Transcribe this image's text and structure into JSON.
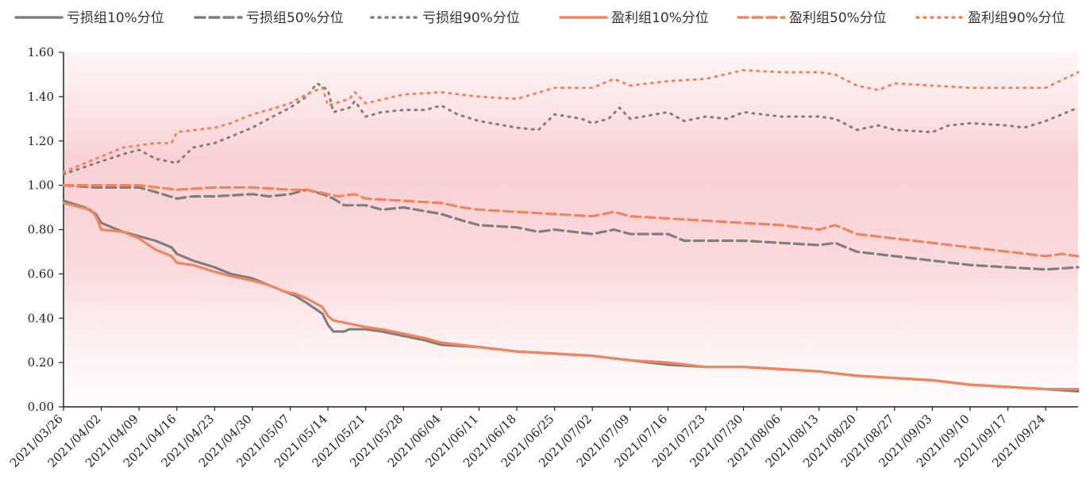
{
  "chart_data": {
    "type": "line",
    "title": "",
    "xlabel": "",
    "ylabel": "",
    "ylim": [
      0,
      1.6
    ],
    "yticks": [
      "0.00",
      "0.20",
      "0.40",
      "0.60",
      "0.80",
      "1.00",
      "1.20",
      "1.40",
      "1.60"
    ],
    "x_range": [
      "2021/03/26",
      "2021/09/30"
    ],
    "x_tick_labels": [
      "2021/03/26",
      "2021/04/02",
      "2021/04/09",
      "2021/04/16",
      "2021/04/23",
      "2021/04/30",
      "2021/05/07",
      "2021/05/14",
      "2021/05/21",
      "2021/05/28",
      "2021/06/04",
      "2021/06/11",
      "2021/06/18",
      "2021/06/25",
      "2021/07/02",
      "2021/07/09",
      "2021/07/16",
      "2021/07/23",
      "2021/07/30",
      "2021/08/06",
      "2021/08/13",
      "2021/08/20",
      "2021/08/27",
      "2021/09/03",
      "2021/09/10",
      "2021/09/17",
      "2021/09/24"
    ],
    "legend_position": "top",
    "background": "pink vertical gradient fill",
    "series": [
      {
        "name": "亏损组10%分位",
        "color": "#7f7f7f",
        "dash": "solid",
        "points": [
          [
            "2021/03/26",
            0.93
          ],
          [
            "2021/03/30",
            0.9
          ],
          [
            "2021/04/01",
            0.87
          ],
          [
            "2021/04/02",
            0.83
          ],
          [
            "2021/04/06",
            0.79
          ],
          [
            "2021/04/09",
            0.77
          ],
          [
            "2021/04/12",
            0.75
          ],
          [
            "2021/04/15",
            0.72
          ],
          [
            "2021/04/16",
            0.69
          ],
          [
            "2021/04/19",
            0.66
          ],
          [
            "2021/04/23",
            0.63
          ],
          [
            "2021/04/26",
            0.6
          ],
          [
            "2021/04/30",
            0.58
          ],
          [
            "2021/05/03",
            0.55
          ],
          [
            "2021/05/06",
            0.52
          ],
          [
            "2021/05/08",
            0.5
          ],
          [
            "2021/05/10",
            0.47
          ],
          [
            "2021/05/13",
            0.42
          ],
          [
            "2021/05/14",
            0.37
          ],
          [
            "2021/05/15",
            0.34
          ],
          [
            "2021/05/17",
            0.34
          ],
          [
            "2021/05/18",
            0.35
          ],
          [
            "2021/05/21",
            0.35
          ],
          [
            "2021/05/24",
            0.34
          ],
          [
            "2021/05/28",
            0.32
          ],
          [
            "2021/06/01",
            0.3
          ],
          [
            "2021/06/04",
            0.28
          ],
          [
            "2021/06/11",
            0.27
          ],
          [
            "2021/06/18",
            0.25
          ],
          [
            "2021/06/25",
            0.24
          ],
          [
            "2021/07/02",
            0.23
          ],
          [
            "2021/07/09",
            0.21
          ],
          [
            "2021/07/16",
            0.19
          ],
          [
            "2021/07/23",
            0.18
          ],
          [
            "2021/07/30",
            0.18
          ],
          [
            "2021/08/06",
            0.17
          ],
          [
            "2021/08/13",
            0.16
          ],
          [
            "2021/08/20",
            0.14
          ],
          [
            "2021/08/27",
            0.13
          ],
          [
            "2021/09/03",
            0.12
          ],
          [
            "2021/09/10",
            0.1
          ],
          [
            "2021/09/17",
            0.09
          ],
          [
            "2021/09/24",
            0.08
          ],
          [
            "2021/09/30",
            0.07
          ]
        ]
      },
      {
        "name": "亏损组50%分位",
        "color": "#7f7f7f",
        "dash": "dashed",
        "points": [
          [
            "2021/03/26",
            1.0
          ],
          [
            "2021/04/01",
            0.99
          ],
          [
            "2021/04/02",
            0.99
          ],
          [
            "2021/04/09",
            0.99
          ],
          [
            "2021/04/12",
            0.97
          ],
          [
            "2021/04/16",
            0.94
          ],
          [
            "2021/04/19",
            0.95
          ],
          [
            "2021/04/23",
            0.95
          ],
          [
            "2021/04/30",
            0.96
          ],
          [
            "2021/05/03",
            0.95
          ],
          [
            "2021/05/07",
            0.96
          ],
          [
            "2021/05/10",
            0.98
          ],
          [
            "2021/05/13",
            0.96
          ],
          [
            "2021/05/15",
            0.94
          ],
          [
            "2021/05/17",
            0.91
          ],
          [
            "2021/05/21",
            0.91
          ],
          [
            "2021/05/24",
            0.89
          ],
          [
            "2021/05/28",
            0.9
          ],
          [
            "2021/06/04",
            0.87
          ],
          [
            "2021/06/08",
            0.84
          ],
          [
            "2021/06/11",
            0.82
          ],
          [
            "2021/06/18",
            0.81
          ],
          [
            "2021/06/22",
            0.79
          ],
          [
            "2021/06/25",
            0.8
          ],
          [
            "2021/07/02",
            0.78
          ],
          [
            "2021/07/06",
            0.8
          ],
          [
            "2021/07/09",
            0.78
          ],
          [
            "2021/07/16",
            0.78
          ],
          [
            "2021/07/19",
            0.75
          ],
          [
            "2021/07/23",
            0.75
          ],
          [
            "2021/07/30",
            0.75
          ],
          [
            "2021/08/06",
            0.74
          ],
          [
            "2021/08/13",
            0.73
          ],
          [
            "2021/08/16",
            0.74
          ],
          [
            "2021/08/20",
            0.7
          ],
          [
            "2021/08/27",
            0.68
          ],
          [
            "2021/09/03",
            0.66
          ],
          [
            "2021/09/10",
            0.64
          ],
          [
            "2021/09/17",
            0.63
          ],
          [
            "2021/09/24",
            0.62
          ],
          [
            "2021/09/30",
            0.63
          ]
        ]
      },
      {
        "name": "亏损组90%分位",
        "color": "#7f7f7f",
        "dash": "dotted",
        "points": [
          [
            "2021/03/26",
            1.05
          ],
          [
            "2021/04/01",
            1.1
          ],
          [
            "2021/04/06",
            1.14
          ],
          [
            "2021/04/09",
            1.16
          ],
          [
            "2021/04/12",
            1.12
          ],
          [
            "2021/04/16",
            1.1
          ],
          [
            "2021/04/19",
            1.17
          ],
          [
            "2021/04/23",
            1.19
          ],
          [
            "2021/04/26",
            1.22
          ],
          [
            "2021/04/30",
            1.26
          ],
          [
            "2021/05/03",
            1.3
          ],
          [
            "2021/05/07",
            1.35
          ],
          [
            "2021/05/10",
            1.4
          ],
          [
            "2021/05/12",
            1.46
          ],
          [
            "2021/05/14",
            1.43
          ],
          [
            "2021/05/15",
            1.33
          ],
          [
            "2021/05/18",
            1.35
          ],
          [
            "2021/05/19",
            1.38
          ],
          [
            "2021/05/21",
            1.31
          ],
          [
            "2021/05/24",
            1.33
          ],
          [
            "2021/05/28",
            1.34
          ],
          [
            "2021/06/01",
            1.34
          ],
          [
            "2021/06/04",
            1.36
          ],
          [
            "2021/06/07",
            1.32
          ],
          [
            "2021/06/11",
            1.29
          ],
          [
            "2021/06/18",
            1.26
          ],
          [
            "2021/06/22",
            1.25
          ],
          [
            "2021/06/25",
            1.32
          ],
          [
            "2021/06/30",
            1.3
          ],
          [
            "2021/07/02",
            1.28
          ],
          [
            "2021/07/05",
            1.3
          ],
          [
            "2021/07/07",
            1.35
          ],
          [
            "2021/07/09",
            1.3
          ],
          [
            "2021/07/16",
            1.33
          ],
          [
            "2021/07/19",
            1.29
          ],
          [
            "2021/07/23",
            1.31
          ],
          [
            "2021/07/27",
            1.3
          ],
          [
            "2021/07/30",
            1.33
          ],
          [
            "2021/08/06",
            1.31
          ],
          [
            "2021/08/13",
            1.31
          ],
          [
            "2021/08/16",
            1.3
          ],
          [
            "2021/08/20",
            1.25
          ],
          [
            "2021/08/24",
            1.27
          ],
          [
            "2021/08/27",
            1.25
          ],
          [
            "2021/09/03",
            1.24
          ],
          [
            "2021/09/06",
            1.27
          ],
          [
            "2021/09/10",
            1.28
          ],
          [
            "2021/09/17",
            1.27
          ],
          [
            "2021/09/20",
            1.26
          ],
          [
            "2021/09/24",
            1.29
          ],
          [
            "2021/09/30",
            1.35
          ]
        ]
      },
      {
        "name": "盈利组10%分位",
        "color": "#f08660",
        "dash": "solid",
        "points": [
          [
            "2021/03/26",
            0.92
          ],
          [
            "2021/03/31",
            0.89
          ],
          [
            "2021/04/01",
            0.86
          ],
          [
            "2021/04/02",
            0.8
          ],
          [
            "2021/04/06",
            0.79
          ],
          [
            "2021/04/09",
            0.76
          ],
          [
            "2021/04/12",
            0.71
          ],
          [
            "2021/04/15",
            0.68
          ],
          [
            "2021/04/16",
            0.65
          ],
          [
            "2021/04/19",
            0.64
          ],
          [
            "2021/04/23",
            0.61
          ],
          [
            "2021/04/26",
            0.59
          ],
          [
            "2021/04/30",
            0.57
          ],
          [
            "2021/05/03",
            0.55
          ],
          [
            "2021/05/06",
            0.52
          ],
          [
            "2021/05/08",
            0.51
          ],
          [
            "2021/05/10",
            0.49
          ],
          [
            "2021/05/13",
            0.45
          ],
          [
            "2021/05/14",
            0.41
          ],
          [
            "2021/05/15",
            0.39
          ],
          [
            "2021/05/17",
            0.38
          ],
          [
            "2021/05/21",
            0.36
          ],
          [
            "2021/05/24",
            0.35
          ],
          [
            "2021/05/28",
            0.33
          ],
          [
            "2021/06/01",
            0.31
          ],
          [
            "2021/06/04",
            0.29
          ],
          [
            "2021/06/11",
            0.27
          ],
          [
            "2021/06/18",
            0.25
          ],
          [
            "2021/06/25",
            0.24
          ],
          [
            "2021/07/02",
            0.23
          ],
          [
            "2021/07/09",
            0.21
          ],
          [
            "2021/07/16",
            0.2
          ],
          [
            "2021/07/23",
            0.18
          ],
          [
            "2021/07/30",
            0.18
          ],
          [
            "2021/08/06",
            0.17
          ],
          [
            "2021/08/13",
            0.16
          ],
          [
            "2021/08/20",
            0.14
          ],
          [
            "2021/08/27",
            0.13
          ],
          [
            "2021/09/03",
            0.12
          ],
          [
            "2021/09/10",
            0.1
          ],
          [
            "2021/09/17",
            0.09
          ],
          [
            "2021/09/24",
            0.08
          ],
          [
            "2021/09/30",
            0.08
          ]
        ]
      },
      {
        "name": "盈利组50%分位",
        "color": "#f08660",
        "dash": "dashed",
        "points": [
          [
            "2021/03/26",
            1.0
          ],
          [
            "2021/04/09",
            1.0
          ],
          [
            "2021/04/16",
            0.98
          ],
          [
            "2021/04/23",
            0.99
          ],
          [
            "2021/04/30",
            0.99
          ],
          [
            "2021/05/07",
            0.98
          ],
          [
            "2021/05/10",
            0.98
          ],
          [
            "2021/05/14",
            0.96
          ],
          [
            "2021/05/16",
            0.95
          ],
          [
            "2021/05/19",
            0.96
          ],
          [
            "2021/05/21",
            0.94
          ],
          [
            "2021/05/28",
            0.93
          ],
          [
            "2021/06/04",
            0.92
          ],
          [
            "2021/06/08",
            0.9
          ],
          [
            "2021/06/11",
            0.89
          ],
          [
            "2021/06/18",
            0.88
          ],
          [
            "2021/06/25",
            0.87
          ],
          [
            "2021/07/02",
            0.86
          ],
          [
            "2021/07/06",
            0.88
          ],
          [
            "2021/07/09",
            0.86
          ],
          [
            "2021/07/16",
            0.85
          ],
          [
            "2021/07/23",
            0.84
          ],
          [
            "2021/07/30",
            0.83
          ],
          [
            "2021/08/06",
            0.82
          ],
          [
            "2021/08/13",
            0.8
          ],
          [
            "2021/08/16",
            0.82
          ],
          [
            "2021/08/20",
            0.78
          ],
          [
            "2021/08/27",
            0.76
          ],
          [
            "2021/09/03",
            0.74
          ],
          [
            "2021/09/10",
            0.72
          ],
          [
            "2021/09/17",
            0.7
          ],
          [
            "2021/09/24",
            0.68
          ],
          [
            "2021/09/27",
            0.69
          ],
          [
            "2021/09/30",
            0.68
          ]
        ]
      },
      {
        "name": "盈利组90%分位",
        "color": "#f08660",
        "dash": "dotted",
        "points": [
          [
            "2021/03/26",
            1.06
          ],
          [
            "2021/04/01",
            1.12
          ],
          [
            "2021/04/06",
            1.17
          ],
          [
            "2021/04/09",
            1.18
          ],
          [
            "2021/04/12",
            1.19
          ],
          [
            "2021/04/15",
            1.19
          ],
          [
            "2021/04/16",
            1.24
          ],
          [
            "2021/04/23",
            1.26
          ],
          [
            "2021/04/26",
            1.28
          ],
          [
            "2021/04/30",
            1.32
          ],
          [
            "2021/05/03",
            1.34
          ],
          [
            "2021/05/07",
            1.37
          ],
          [
            "2021/05/10",
            1.41
          ],
          [
            "2021/05/13",
            1.44
          ],
          [
            "2021/05/14",
            1.36
          ],
          [
            "2021/05/18",
            1.39
          ],
          [
            "2021/05/19",
            1.42
          ],
          [
            "2021/05/21",
            1.37
          ],
          [
            "2021/05/28",
            1.41
          ],
          [
            "2021/06/04",
            1.42
          ],
          [
            "2021/06/11",
            1.4
          ],
          [
            "2021/06/18",
            1.39
          ],
          [
            "2021/06/25",
            1.44
          ],
          [
            "2021/07/02",
            1.44
          ],
          [
            "2021/07/06",
            1.48
          ],
          [
            "2021/07/09",
            1.45
          ],
          [
            "2021/07/16",
            1.47
          ],
          [
            "2021/07/23",
            1.48
          ],
          [
            "2021/07/30",
            1.52
          ],
          [
            "2021/08/06",
            1.51
          ],
          [
            "2021/08/13",
            1.51
          ],
          [
            "2021/08/16",
            1.5
          ],
          [
            "2021/08/20",
            1.45
          ],
          [
            "2021/08/24",
            1.43
          ],
          [
            "2021/08/27",
            1.46
          ],
          [
            "2021/09/03",
            1.45
          ],
          [
            "2021/09/10",
            1.44
          ],
          [
            "2021/09/17",
            1.44
          ],
          [
            "2021/09/24",
            1.44
          ],
          [
            "2021/09/30",
            1.51
          ]
        ]
      }
    ]
  }
}
